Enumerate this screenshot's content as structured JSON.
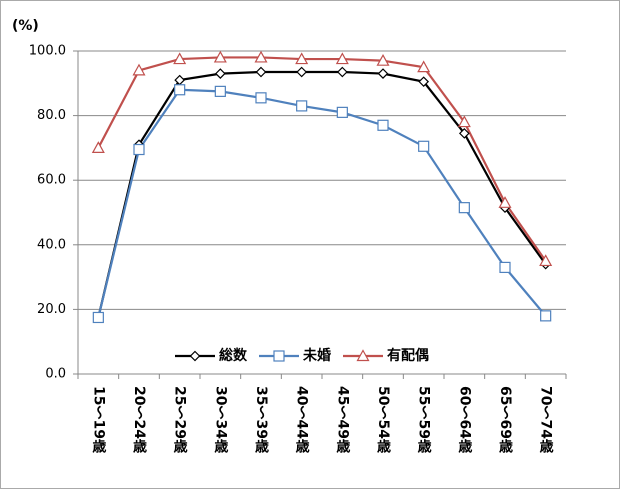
{
  "chart_data": {
    "type": "line",
    "y_label": "(%)",
    "categories": [
      "15～19歳",
      "20～24歳",
      "25～29歳",
      "30～34歳",
      "35～39歳",
      "40～44歳",
      "45～49歳",
      "50～54歳",
      "55～59歳",
      "60～64歳",
      "65～69歳",
      "70～74歳"
    ],
    "series": [
      {
        "name": "総数",
        "color": "#000000",
        "marker": "diamond",
        "values": [
          17.5,
          71,
          91,
          93,
          93.5,
          93.5,
          93.5,
          93,
          90.5,
          74.5,
          51.5,
          34
        ]
      },
      {
        "name": "未婚",
        "color": "#4f81bd",
        "marker": "square",
        "values": [
          17.5,
          69.5,
          88,
          87.5,
          85.5,
          83,
          81,
          77,
          70.5,
          51.5,
          33,
          18
        ]
      },
      {
        "name": "有配偶",
        "color": "#c0504d",
        "marker": "triangle",
        "values": [
          70,
          94,
          97.5,
          98,
          98,
          97.5,
          97.5,
          97,
          95,
          78,
          53,
          35
        ]
      }
    ],
    "ylim": [
      0,
      100
    ],
    "yticks": [
      {
        "value": 0,
        "label": "0.0"
      },
      {
        "value": 20,
        "label": "20.0"
      },
      {
        "value": 40,
        "label": "40.0"
      },
      {
        "value": 60,
        "label": "60.0"
      },
      {
        "value": 80,
        "label": "80.0"
      },
      {
        "value": 100,
        "label": "100.0"
      }
    ],
    "grid": true,
    "legend": "lower center"
  }
}
